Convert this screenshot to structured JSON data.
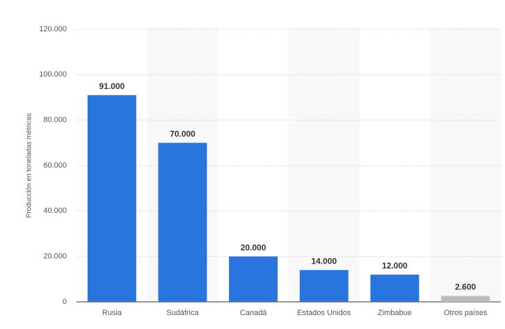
{
  "chart_data": {
    "type": "bar",
    "y_label": "Producción en toneladas métricas",
    "categories": [
      "Rusia",
      "Sudáfrica",
      "Canadá",
      "Estados Unidos",
      "Zimbabue",
      "Otros países"
    ],
    "values": [
      91000,
      70000,
      20000,
      14000,
      12000,
      2600
    ],
    "value_labels": [
      "91.000",
      "70.000",
      "20.000",
      "14.000",
      "12.000",
      "2.600"
    ],
    "colors": [
      "#2876dd",
      "#2876dd",
      "#2876dd",
      "#2876dd",
      "#2876dd",
      "#bdbdbd"
    ],
    "ylim": [
      0,
      120000
    ],
    "yticks": [
      0,
      {
        "value": 20000,
        "label": "20.000"
      },
      {
        "value": 40000,
        "label": "40.000"
      },
      {
        "value": 60000,
        "label": "60.000"
      },
      {
        "value": 80000,
        "label": "80.000"
      },
      {
        "value": 100000,
        "label": "100.000"
      },
      {
        "value": 120000,
        "label": "120.000"
      }
    ],
    "grid": true
  }
}
